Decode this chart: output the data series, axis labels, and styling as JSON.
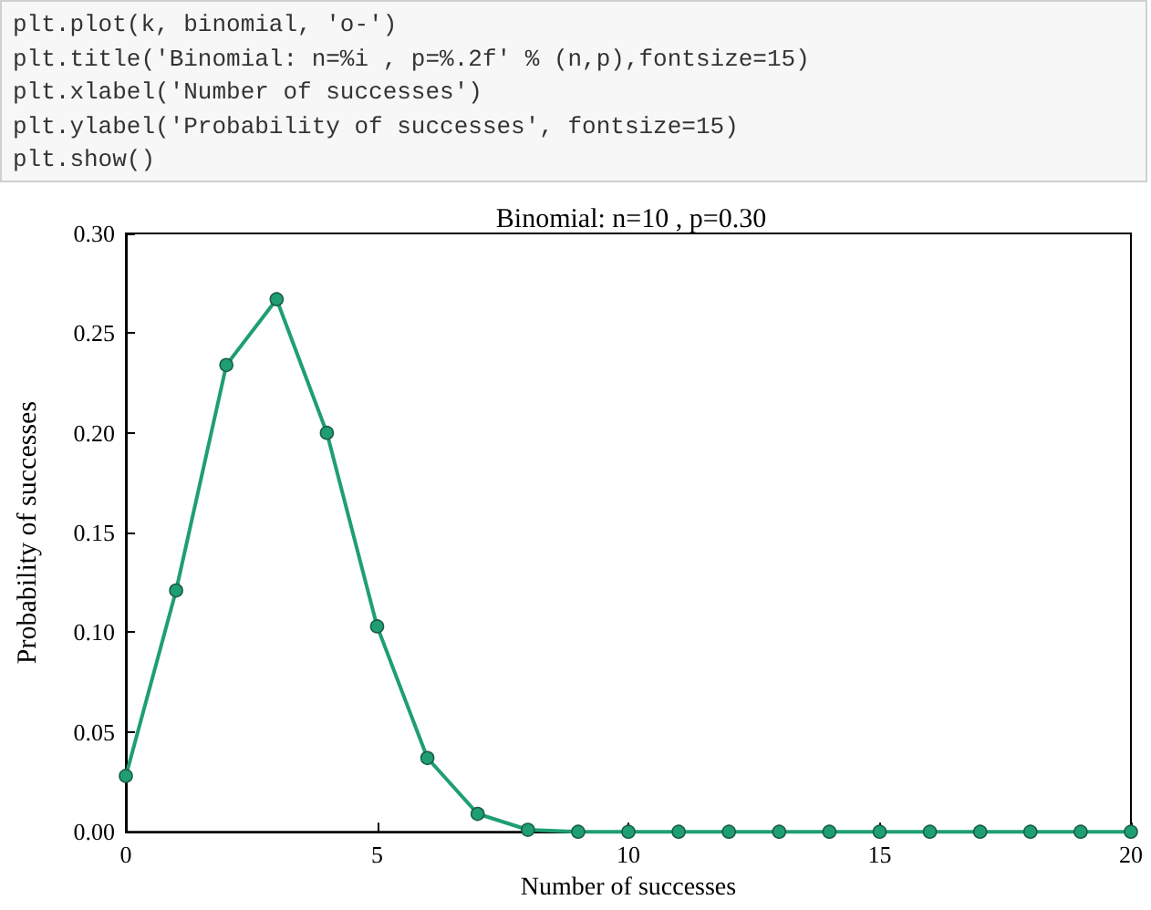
{
  "chart_data": {
    "type": "line",
    "title": "Binomial: n=10 , p=0.30",
    "xlabel": "Number of successes",
    "ylabel": "Probability of successes",
    "annotations": [
      "plt.plot(k, binomial, 'o-')",
      "plt.title('Binomial: n=%i , p=%.2f' % (n,p),fontsize=15)",
      "plt.xlabel('Number of successes')",
      "plt.ylabel('Probability of successes', fontsize=15)",
      "plt.show()"
    ],
    "x": [
      0,
      1,
      2,
      3,
      4,
      5,
      6,
      7,
      8,
      9,
      10,
      11,
      12,
      13,
      14,
      15,
      16,
      17,
      18,
      19,
      20
    ],
    "series": [
      {
        "color": "#1f9e74",
        "values": [
          0.028,
          0.121,
          0.234,
          0.267,
          0.2,
          0.103,
          0.037,
          0.009,
          0.001,
          0,
          0,
          0,
          0,
          0,
          0,
          0,
          0,
          0,
          0,
          0,
          0
        ]
      }
    ],
    "xlim": [
      0,
      20
    ],
    "xticks": [
      0,
      5,
      10,
      15,
      20
    ],
    "ylim": [
      0,
      0.3
    ],
    "yticks": [
      {
        "value": 0,
        "label": "0.00"
      },
      {
        "value": 0.05,
        "label": "0.05"
      },
      {
        "value": 0.1,
        "label": "0.10"
      },
      {
        "value": 0.15,
        "label": "0.15"
      },
      {
        "value": 0.2,
        "label": "0.20"
      },
      {
        "value": 0.25,
        "label": "0.25"
      },
      {
        "value": 0.3,
        "label": "0.30"
      }
    ],
    "marker": "circle",
    "line_style": "solid",
    "grid": false
  }
}
